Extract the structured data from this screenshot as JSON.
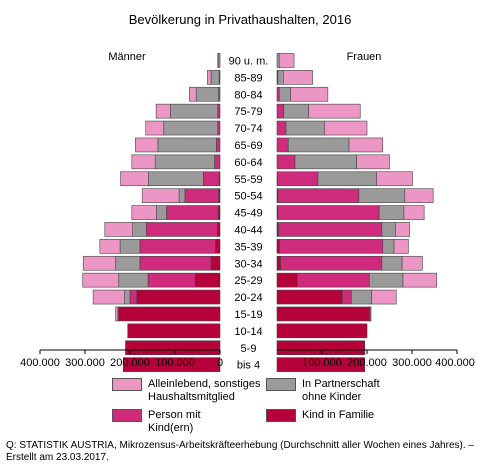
{
  "chart_data": {
    "type": "bar",
    "title": "Bevölkerung in Privathaushalten, 2016",
    "left_label": "Männer",
    "right_label": "Frauen",
    "categories": [
      "90 u. m.",
      "85-89",
      "80-84",
      "75-79",
      "70-74",
      "65-69",
      "60-64",
      "55-59",
      "50-54",
      "45-49",
      "40-44",
      "35-39",
      "30-34",
      "25-29",
      "20-24",
      "15-19",
      "10-14",
      "5-9",
      "bis 4"
    ],
    "xlim": [
      -400000,
      400000
    ],
    "x_tick_labels": [
      "400.000",
      "300.000",
      "200.000",
      "100.000",
      "0",
      "100.000",
      "200.000",
      "300.000",
      "400.000"
    ],
    "grid": false,
    "colors": {
      "kind_in_familie": "#b5003a",
      "person_mit_kind": "#cf2b7d",
      "in_partnerschaft": "#9a9a9a",
      "alleinlebend": "#eb96c4"
    },
    "series_order": [
      "kind_in_familie",
      "person_mit_kind",
      "in_partnerschaft",
      "alleinlebend"
    ],
    "men": {
      "kind_in_familie": [
        0,
        0,
        0,
        0,
        0,
        0,
        0,
        2000,
        3000,
        4000,
        6000,
        10000,
        20000,
        55000,
        185000,
        225000,
        205000,
        210000,
        215000
      ],
      "person_mit_kind": [
        0,
        2000,
        3000,
        5000,
        5000,
        8000,
        12000,
        35000,
        75000,
        115000,
        158000,
        168000,
        158000,
        105000,
        15000,
        2000,
        0,
        0,
        0
      ],
      "in_partnerschaft": [
        3000,
        18000,
        50000,
        105000,
        120000,
        130000,
        132000,
        122000,
        13000,
        22000,
        30000,
        44000,
        54000,
        65000,
        12000,
        0,
        0,
        0,
        0
      ],
      "alleinlebend": [
        2000,
        8000,
        15000,
        32000,
        40000,
        50000,
        52000,
        62000,
        82000,
        55000,
        62000,
        45000,
        72000,
        80000,
        70000,
        5000,
        0,
        0,
        0
      ]
    },
    "women": {
      "kind_in_familie": [
        0,
        0,
        0,
        0,
        0,
        0,
        0,
        1000,
        2000,
        2000,
        3000,
        5000,
        8000,
        45000,
        145000,
        205000,
        200000,
        195000,
        195000
      ],
      "person_mit_kind": [
        0,
        2000,
        5000,
        15000,
        20000,
        25000,
        40000,
        90000,
        180000,
        225000,
        230000,
        230000,
        225000,
        160000,
        20000,
        2000,
        0,
        0,
        0
      ],
      "in_partnerschaft": [
        5000,
        12000,
        25000,
        55000,
        85000,
        135000,
        137000,
        130000,
        102000,
        55000,
        30000,
        25000,
        45000,
        75000,
        45000,
        0,
        0,
        0,
        0
      ],
      "alleinlebend": [
        33000,
        65000,
        83000,
        115000,
        95000,
        75000,
        73000,
        80000,
        63000,
        45000,
        32000,
        32000,
        45000,
        75000,
        55000,
        2000,
        0,
        0,
        0
      ]
    },
    "legend": [
      {
        "key": "alleinlebend",
        "label": "Alleinlebend, sonstiges Haushaltsmitglied"
      },
      {
        "key": "in_partnerschaft",
        "label": "In Partnerschaft ohne Kinder"
      },
      {
        "key": "person_mit_kind",
        "label": "Person mit Kind(ern)"
      },
      {
        "key": "kind_in_familie",
        "label": "Kind in Familie"
      }
    ]
  },
  "source": "Q: STATISTIK AUSTRIA, Mikrozensus-Arbeitskräfteerhebung (Durchschnitt aller Wochen eines Jahres). – Erstellt am 23.03.2017."
}
